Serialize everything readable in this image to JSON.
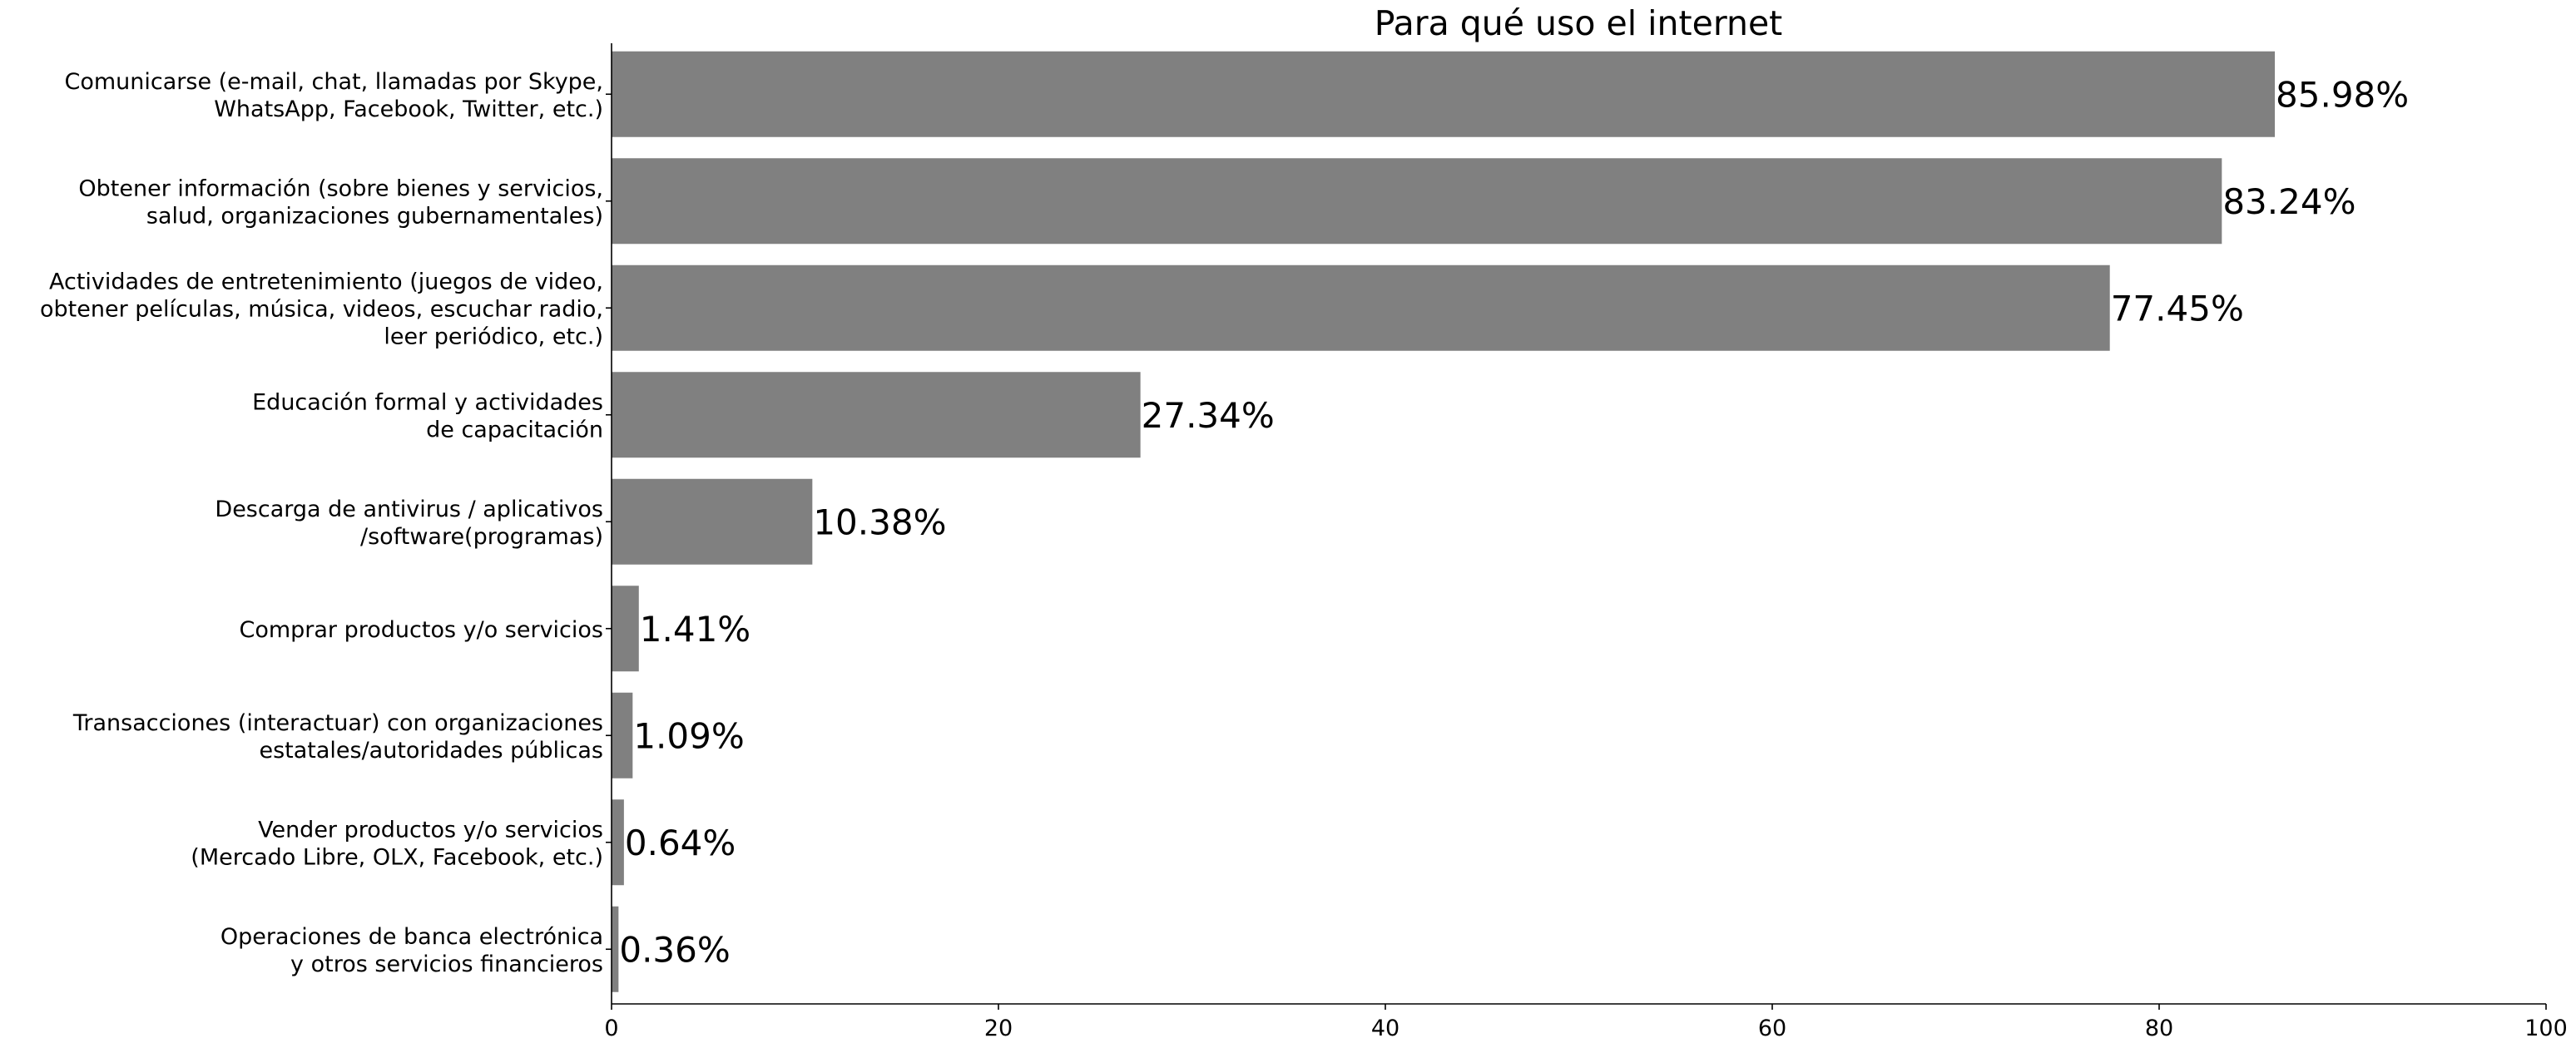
{
  "chart_data": {
    "type": "bar",
    "orientation": "horizontal",
    "title": "Para qué uso el internet",
    "xlabel": "",
    "ylabel": "",
    "xlim": [
      0,
      100
    ],
    "x_ticks": [
      0,
      20,
      40,
      60,
      80,
      100
    ],
    "grid": false,
    "bar_color": "#808080",
    "categories": [
      {
        "lines": [
          "Comunicarse (e-mail, chat, llamadas por Skype,",
          "WhatsApp, Facebook, Twitter, etc.)"
        ],
        "value": 85.98,
        "label": "85.98%"
      },
      {
        "lines": [
          "Obtener información (sobre bienes y servicios,",
          "salud, organizaciones gubernamentales)"
        ],
        "value": 83.24,
        "label": "83.24%"
      },
      {
        "lines": [
          "Actividades de entretenimiento (juegos de video,",
          "obtener películas, música, videos, escuchar radio,",
          "leer periódico, etc.)"
        ],
        "value": 77.45,
        "label": "77.45%"
      },
      {
        "lines": [
          "Educación formal y actividades",
          "de capacitación"
        ],
        "value": 27.34,
        "label": "27.34%"
      },
      {
        "lines": [
          "Descarga de antivirus / aplicativos",
          "/software(programas)"
        ],
        "value": 10.38,
        "label": "10.38%"
      },
      {
        "lines": [
          "Comprar productos y/o servicios"
        ],
        "value": 1.41,
        "label": "1.41%"
      },
      {
        "lines": [
          "Transacciones (interactuar) con organizaciones",
          "estatales/autoridades públicas"
        ],
        "value": 1.09,
        "label": "1.09%"
      },
      {
        "lines": [
          "Vender productos y/o servicios",
          "(Mercado Libre, OLX, Facebook, etc.)"
        ],
        "value": 0.64,
        "label": "0.64%"
      },
      {
        "lines": [
          "Operaciones de banca electrónica",
          "y otros servicios financieros"
        ],
        "value": 0.36,
        "label": "0.36%"
      }
    ]
  }
}
